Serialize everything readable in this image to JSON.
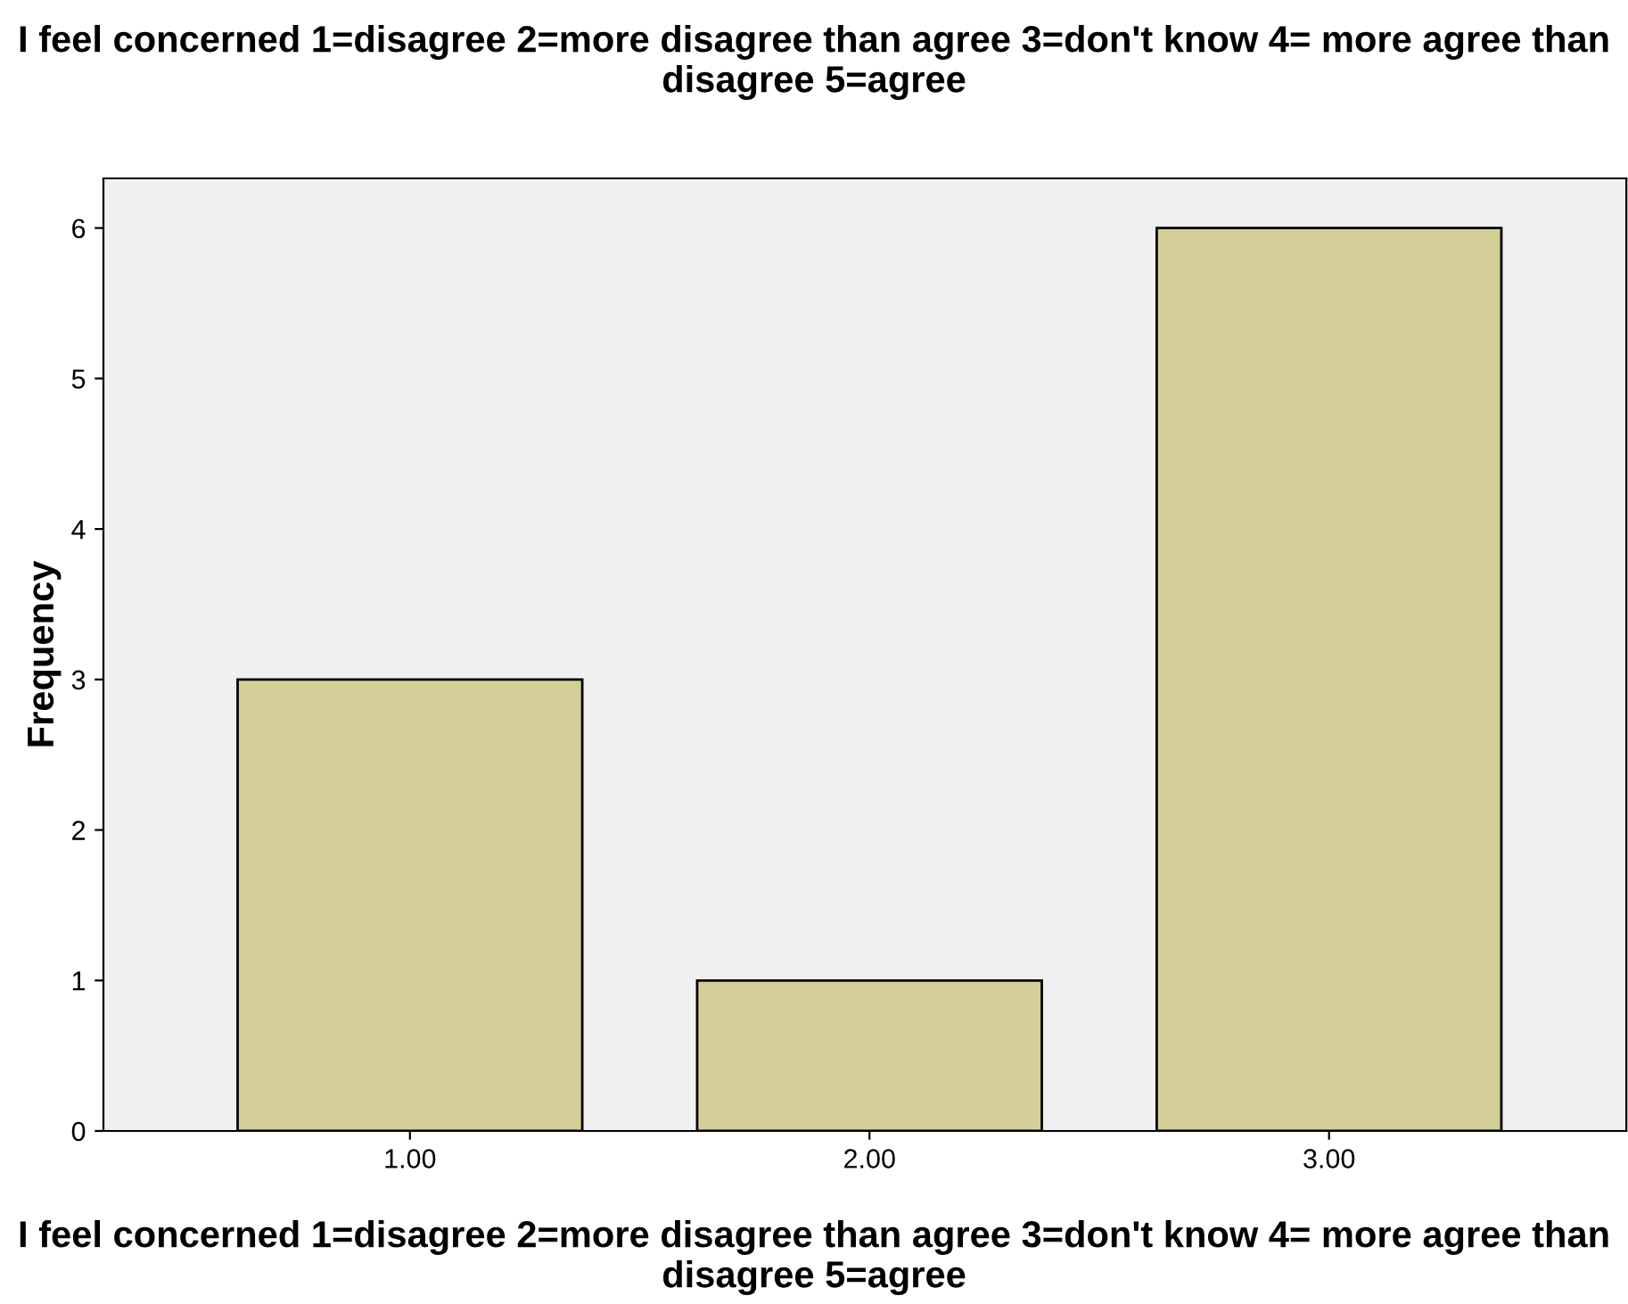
{
  "chart_data": {
    "type": "bar",
    "title": "I feel concerned 1=disagree 2=more disagree than agree 3=don't know 4= more agree than disagree 5=agree",
    "xlabel": "I feel concerned 1=disagree 2=more disagree than agree 3=don't know 4= more agree than disagree 5=agree",
    "ylabel": "Frequency",
    "categories": [
      "1.00",
      "2.00",
      "3.00"
    ],
    "values": [
      3,
      1,
      6
    ],
    "color": "#d4cf98",
    "ylim": [
      0,
      6.33
    ],
    "yticks": [
      0,
      1,
      2,
      3,
      4,
      5,
      6
    ],
    "grid": false
  }
}
